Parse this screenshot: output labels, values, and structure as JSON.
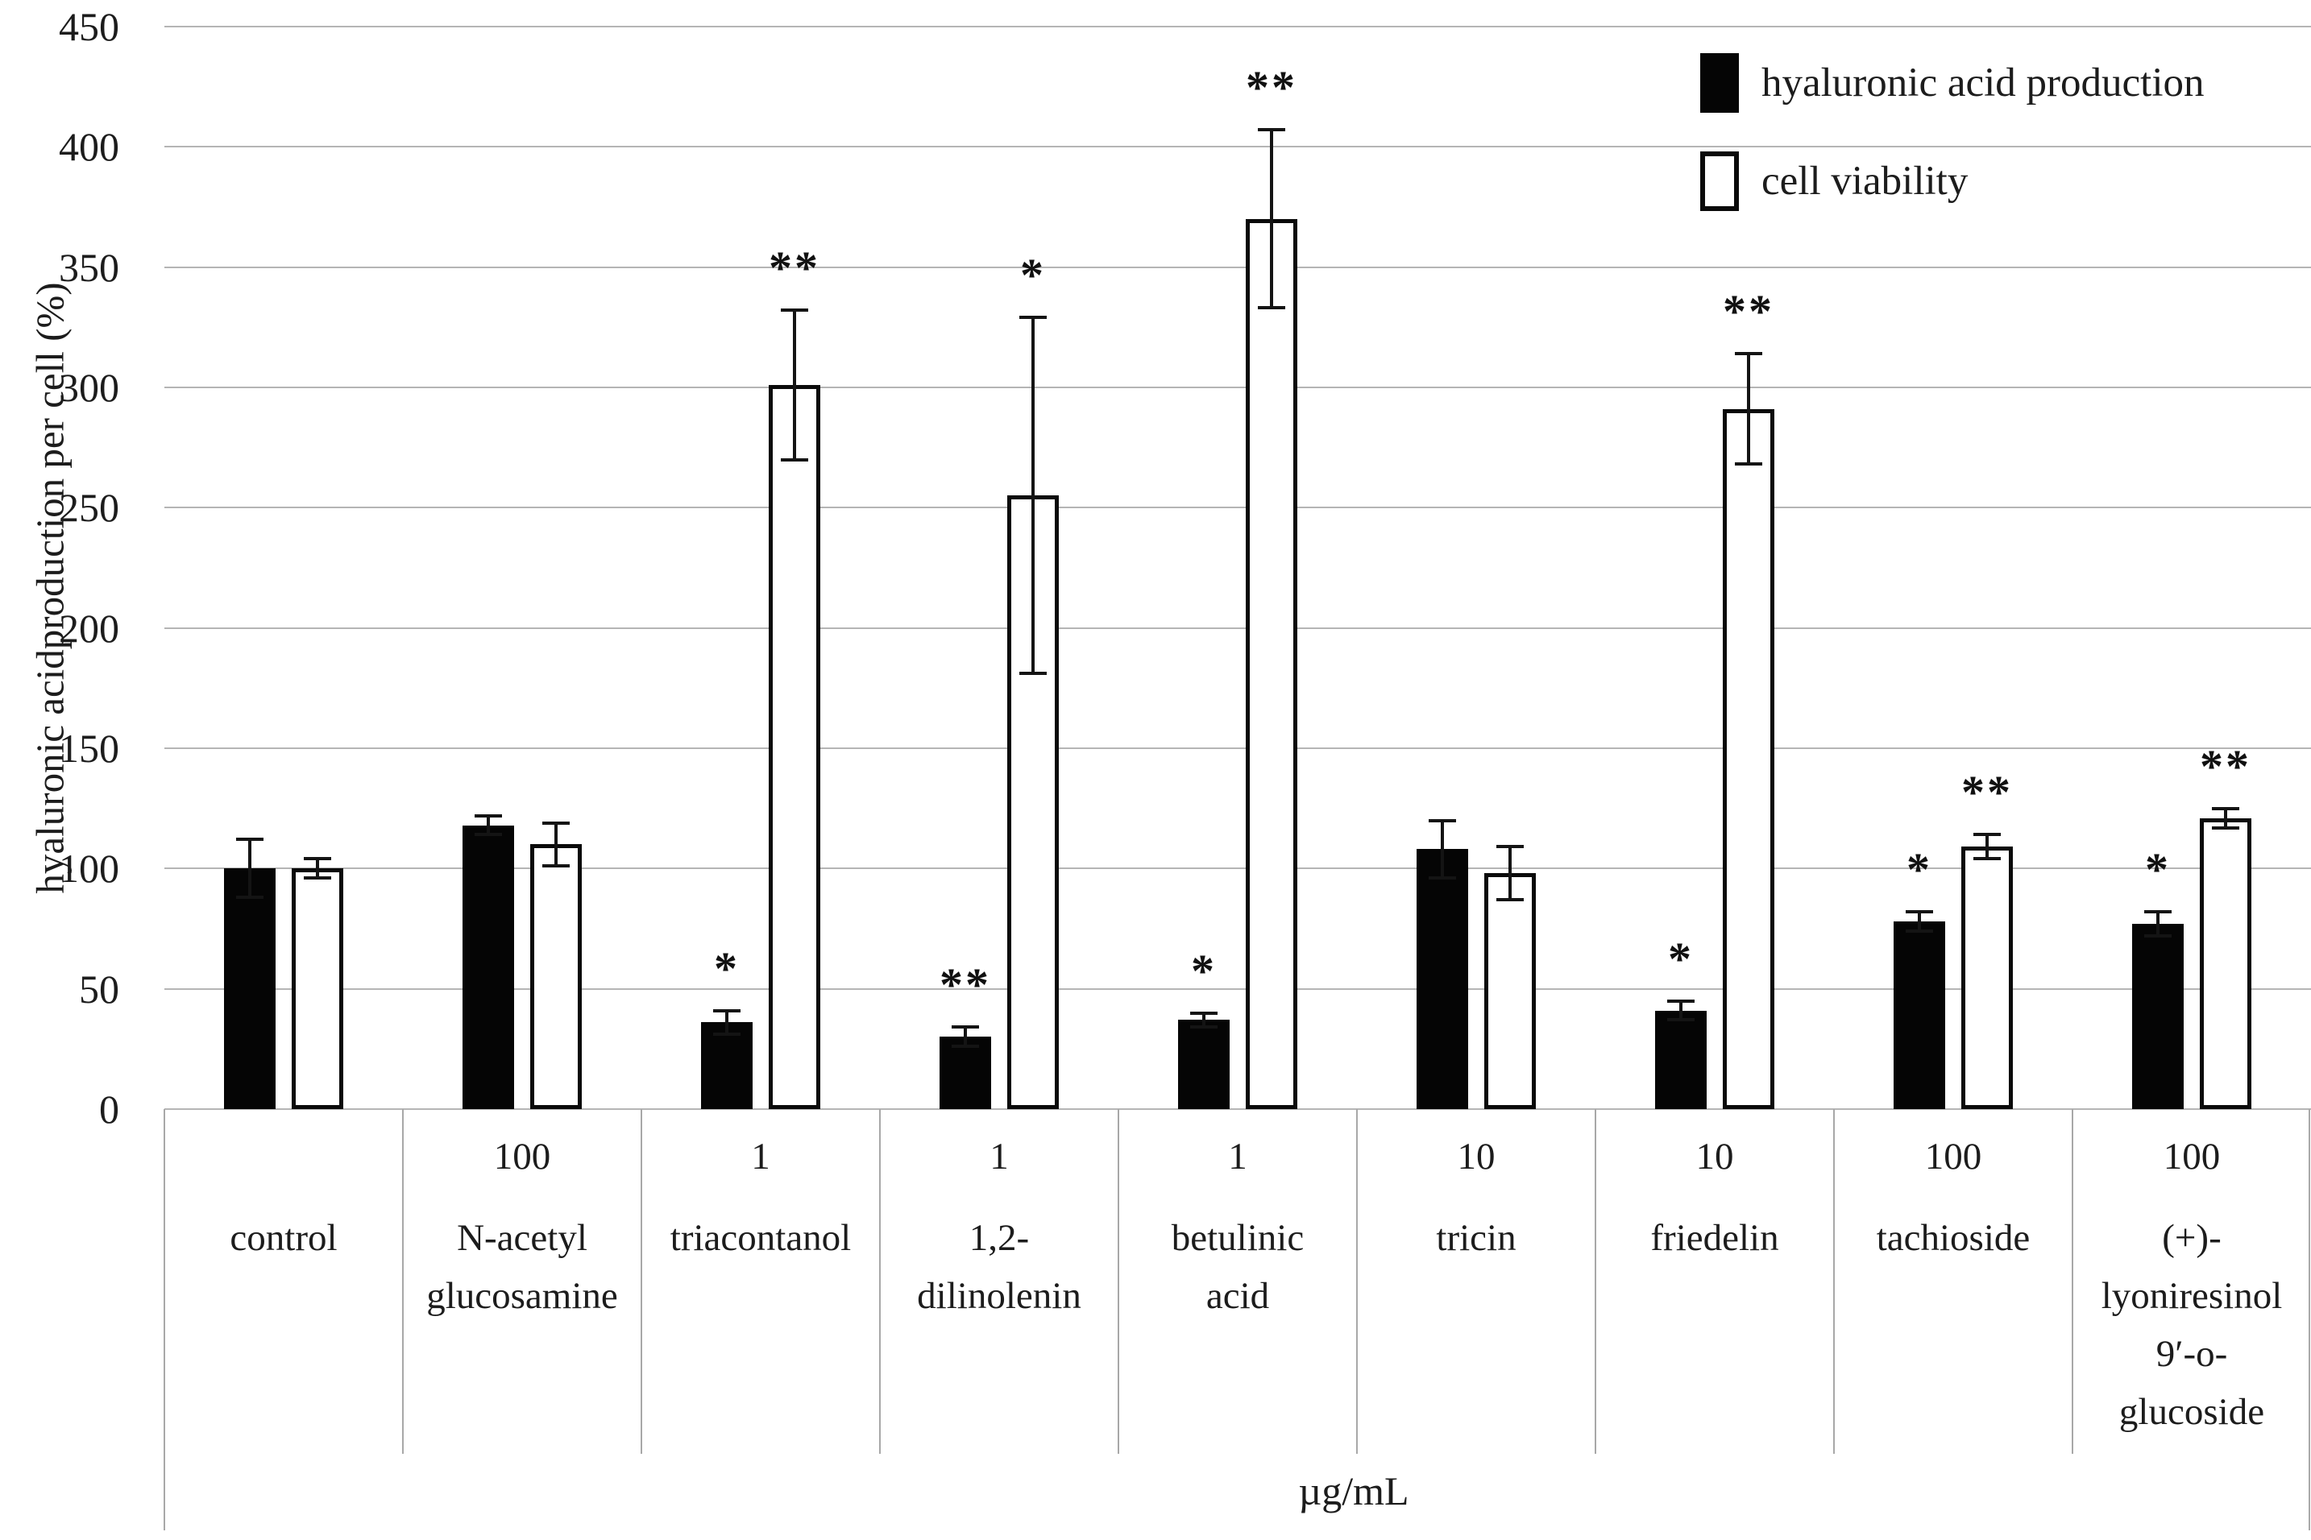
{
  "chart_data": {
    "type": "bar",
    "title": "",
    "ylabel": "hyaluronic acidproduction per cell (%)",
    "xlabel": "µg/mL",
    "ylim": [
      0,
      450
    ],
    "ytick_step": 50,
    "yticks": [
      "0",
      "50",
      "100",
      "150",
      "200",
      "250",
      "300",
      "350",
      "400",
      "450"
    ],
    "grid": {
      "horizontal": true,
      "color": "#b5b5b5"
    },
    "legend": {
      "position": "top-right",
      "entries": [
        {
          "label": "hyaluronic acid production",
          "fill": "#000000"
        },
        {
          "label": "cell viability",
          "fill": "#ffffff",
          "border": "#000000"
        }
      ]
    },
    "categories": [
      {
        "label_lines": [
          "control"
        ],
        "dose": ""
      },
      {
        "label_lines": [
          "N-acetyl",
          "glucosamine"
        ],
        "dose": "100"
      },
      {
        "label_lines": [
          "triacontanol"
        ],
        "dose": "1"
      },
      {
        "label_lines": [
          "1,2-",
          "dilinolenin"
        ],
        "dose": "1"
      },
      {
        "label_lines": [
          "betulinic",
          "acid"
        ],
        "dose": "1"
      },
      {
        "label_lines": [
          "tricin"
        ],
        "dose": "10"
      },
      {
        "label_lines": [
          "friedelin"
        ],
        "dose": "10"
      },
      {
        "label_lines": [
          "tachioside"
        ],
        "dose": "100"
      },
      {
        "label_lines": [
          "(+)-",
          "lyoniresinol",
          "9′-o-",
          "glucoside"
        ],
        "dose": "100"
      }
    ],
    "dose_unit": "µg/mL",
    "series": [
      {
        "name": "hyaluronic acid production",
        "fill": "#000000",
        "values": [
          100,
          118,
          36,
          30,
          37,
          108,
          41,
          78,
          77
        ],
        "errors": [
          12,
          4,
          5,
          4,
          3,
          12,
          4,
          4,
          5
        ],
        "significance": [
          "",
          "",
          "*",
          "**",
          "*",
          "",
          "*",
          "*",
          "*"
        ]
      },
      {
        "name": "cell viability",
        "fill": "#ffffff",
        "border": "#000000",
        "values": [
          100,
          110,
          301,
          255,
          370,
          98,
          291,
          109,
          121
        ],
        "errors": [
          4,
          9,
          31,
          74,
          37,
          11,
          23,
          5,
          4
        ],
        "significance": [
          "",
          "",
          "**",
          "*",
          "**",
          "",
          "**",
          "**",
          "**"
        ]
      }
    ]
  }
}
